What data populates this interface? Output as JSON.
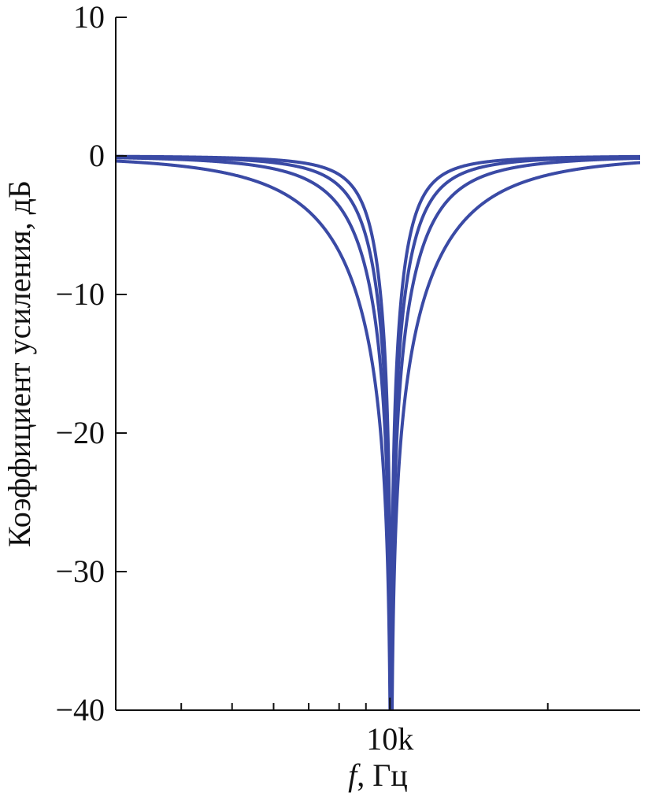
{
  "chart_data": {
    "type": "line",
    "title": "",
    "xlabel_italic": "f",
    "xlabel_rest": ", Гц",
    "ylabel": "Коэффициент усиления, дБ",
    "x_scale": "log",
    "xlim": [
      3000,
      30000
    ],
    "ylim": [
      -40,
      10
    ],
    "y_ticks": [
      10,
      0,
      -10,
      -20,
      -30,
      -40
    ],
    "y_tick_labels": [
      "10",
      "0",
      "−10",
      "−20",
      "−30",
      "−40"
    ],
    "x_tick_labels": [
      {
        "value": 10000,
        "label": "10k"
      }
    ],
    "x_minor_ticks": [
      4000,
      5000,
      6000,
      7000,
      8000,
      9000,
      20000
    ],
    "line_color": "#3a4aa5",
    "grid": false,
    "legend": "none",
    "series": [
      {
        "notch_freq": 10050,
        "q": 1.1,
        "min_db": -40
      },
      {
        "notch_freq": 10050,
        "q": 1.9,
        "min_db": -40
      },
      {
        "notch_freq": 10050,
        "q": 2.7,
        "min_db": -40
      },
      {
        "notch_freq": 10050,
        "q": 3.6,
        "min_db": -40
      }
    ]
  }
}
